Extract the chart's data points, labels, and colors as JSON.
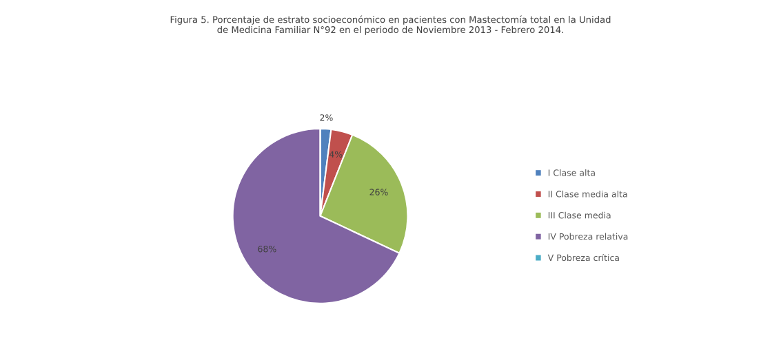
{
  "chart_data": {
    "type": "pie",
    "title": "Figura 5. Porcentaje de estrato socioeconómico en pacientes con Mastectomía total en la Unidad\nde Medicina Familiar N°92 en el periodo de Noviembre 2013 - Febrero 2014.",
    "categories": [
      "I Clase alta",
      "II Clase media alta",
      "III Clase media",
      "IV Pobreza relativa",
      "V Pobreza crítica"
    ],
    "values": [
      2,
      4,
      26,
      68,
      0
    ],
    "colors": [
      "#4f81bd",
      "#c0504d",
      "#9bbb59",
      "#8064a2",
      "#4bacc6"
    ],
    "value_labels": [
      "2%",
      "4%",
      "26%",
      "68%",
      null
    ],
    "legend": "right"
  }
}
